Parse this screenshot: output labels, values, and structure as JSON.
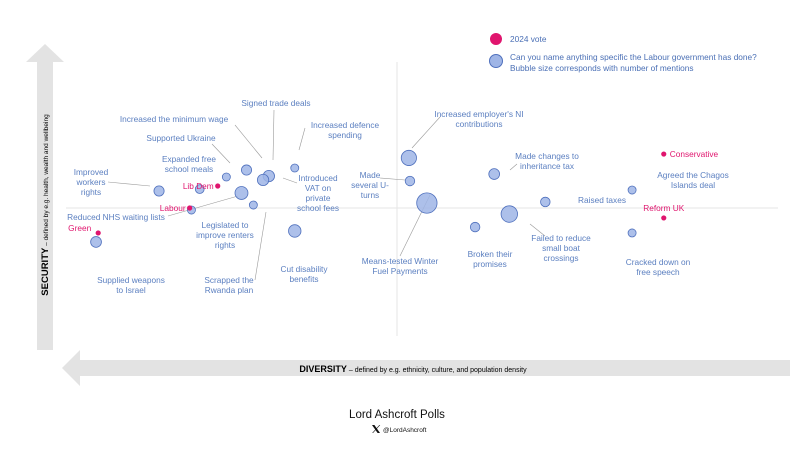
{
  "chart_data": {
    "type": "scatter",
    "title": "",
    "x_axis": {
      "label_bold": "DIVERSITY",
      "label_rest": " – defined by e.g. ethnicity, culture, and population density",
      "range": [
        -1,
        1
      ]
    },
    "y_axis": {
      "label_bold": "SECURITY",
      "label_rest": " – defined by e.g. health, wealth and wellbeing",
      "range": [
        -1,
        1
      ]
    },
    "legend": {
      "placement": "top-right",
      "vote_label": "2024 vote",
      "bubble_label_line1": "Can you name anything specific the Labour government has done?",
      "bubble_label_line2": "Bubble size corresponds with number of mentions"
    },
    "colors": {
      "bubble_fill": "#9fb5e6",
      "bubble_stroke": "#4f70bd",
      "vote_point": "#e0156e",
      "label_text": "#5b7fc0",
      "axis_arrow": "#e3e3e3"
    },
    "votes": [
      {
        "name": "Conservative",
        "x": 0.741,
        "y": 0.348
      },
      {
        "name": "Lib Dem",
        "x": -0.498,
        "y": 0.142
      },
      {
        "name": "Labour",
        "x": -0.576,
        "y": 0.0
      },
      {
        "name": "Reform UK",
        "x": 0.741,
        "y": -0.064
      },
      {
        "name": "Green",
        "x": -0.83,
        "y": -0.161
      }
    ],
    "items": [
      {
        "label": "Increased the minimum wage",
        "x": -0.418,
        "y": 0.245,
        "mentions": 8
      },
      {
        "label": "Signed trade deals",
        "x": -0.356,
        "y": 0.206,
        "mentions": 10
      },
      {
        "label": "Supported Ukraine",
        "x": -0.474,
        "y": 0.2,
        "mentions": 5
      },
      {
        "label": "Increased defence spending",
        "x": -0.284,
        "y": 0.258,
        "mentions": 5
      },
      {
        "label": "Expanded free school meals",
        "x": -0.548,
        "y": 0.122,
        "mentions": 6
      },
      {
        "label": "Improved workers rights",
        "x": -0.661,
        "y": 0.11,
        "mentions": 8
      },
      {
        "label": "Introduced VAT on private school fees",
        "x": -0.372,
        "y": 0.181,
        "mentions": 10
      },
      {
        "label": "Reduced NHS waiting lists",
        "x": -0.432,
        "y": 0.097,
        "mentions": 13
      },
      {
        "label": "Legislated to improve renters rights",
        "x": -0.571,
        "y": -0.013,
        "mentions": 5
      },
      {
        "label": "Scrapped the Rwanda plan",
        "x": -0.399,
        "y": 0.019,
        "mentions": 5
      },
      {
        "label": "Cut disability benefits",
        "x": -0.284,
        "y": -0.148,
        "mentions": 12
      },
      {
        "label": "Supplied weapons to Israel",
        "x": -0.836,
        "y": -0.219,
        "mentions": 9
      },
      {
        "label": "Increased employer's NI contributions",
        "x": 0.033,
        "y": 0.323,
        "mentions": 18
      },
      {
        "label": "Made several U-turns",
        "x": 0.036,
        "y": 0.174,
        "mentions": 7
      },
      {
        "label": "Means-tested Winter Fuel Payments",
        "x": 0.083,
        "y": 0.032,
        "mentions": 32
      },
      {
        "label": "Made changes to inheritance tax",
        "x": 0.27,
        "y": 0.219,
        "mentions": 9
      },
      {
        "label": "Raised taxes",
        "x": 0.412,
        "y": 0.039,
        "mentions": 7
      },
      {
        "label": "Failed to reduce small boat crossings",
        "x": 0.312,
        "y": -0.039,
        "mentions": 21
      },
      {
        "label": "Broken their promises",
        "x": 0.217,
        "y": -0.123,
        "mentions": 7
      },
      {
        "label": "Agreed the Chagos Islands deal",
        "x": 0.653,
        "y": 0.116,
        "mentions": 5
      },
      {
        "label": "Cracked down on free speech",
        "x": 0.653,
        "y": -0.161,
        "mentions": 5
      }
    ]
  },
  "footer": {
    "title": "Lord Ashcroft Polls",
    "x_icon": "x-logo-icon",
    "handle": "@LordAshcroft"
  }
}
